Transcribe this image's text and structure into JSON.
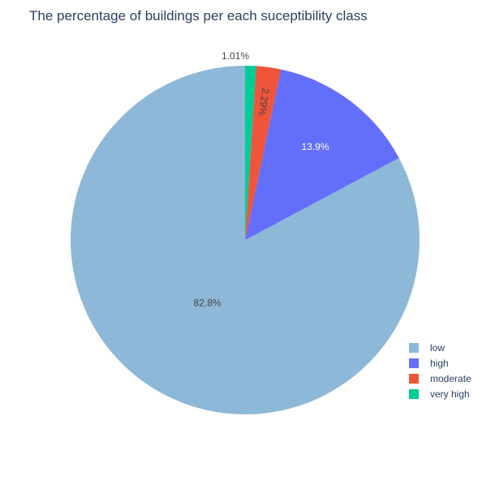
{
  "chart_data": {
    "type": "pie",
    "title": "The percentage of buildings per each suceptibility class",
    "categories": [
      "low",
      "high",
      "moderate",
      "very high"
    ],
    "values": [
      82.8,
      13.9,
      2.29,
      1.01
    ],
    "value_labels": [
      "82.8%",
      "13.9%",
      "2.29%",
      "1.01%"
    ],
    "colors": [
      "#8db8d8",
      "#636efa",
      "#ef553b",
      "#00cc96"
    ],
    "label_colors": [
      "#444444",
      "#ffffff",
      "#444444",
      "#444444"
    ],
    "legend": {
      "placement": "right-bottom",
      "items": [
        "low",
        "high",
        "moderate",
        "very high"
      ]
    },
    "direction": "counterclockwise",
    "start_angle": "top"
  }
}
